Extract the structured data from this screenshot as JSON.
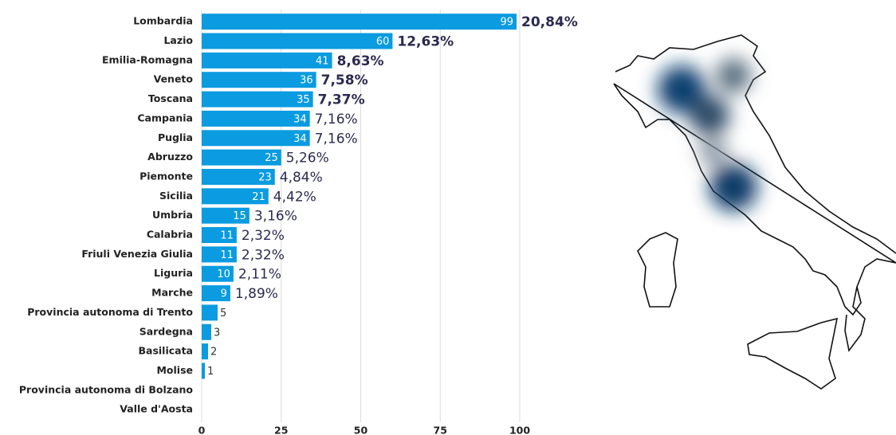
{
  "chart_data": {
    "type": "bar",
    "orientation": "horizontal",
    "color": "#0a9be0",
    "categories": [
      "Lombardia",
      "Lazio",
      "Emilia-Romagna",
      "Veneto",
      "Toscana",
      "Campania",
      "Puglia",
      "Abruzzo",
      "Piemonte",
      "Sicilia",
      "Umbria",
      "Calabria",
      "Friuli Venezia Giulia",
      "Liguria",
      "Marche",
      "Provincia autonoma di Trento",
      "Sardegna",
      "Basilicata",
      "Molise",
      "Provincia autonoma di Bolzano",
      "Valle d'Aosta"
    ],
    "values": [
      99,
      60,
      41,
      36,
      35,
      34,
      34,
      25,
      23,
      21,
      15,
      11,
      11,
      10,
      9,
      5,
      3,
      2,
      1,
      null,
      null
    ],
    "percentages": [
      20.84,
      12.63,
      8.63,
      7.58,
      7.37,
      7.16,
      7.16,
      5.26,
      4.84,
      4.42,
      3.16,
      2.32,
      2.32,
      2.11,
      1.89,
      null,
      null,
      null,
      null,
      null,
      null
    ],
    "percentage_labels": [
      "20,84%",
      "12,63%",
      "8,63%",
      "7,58%",
      "7,37%",
      "7,16%",
      "7,16%",
      "5,26%",
      "4,84%",
      "4,42%",
      "3,16%",
      "2,32%",
      "2,32%",
      "2,11%",
      "1,89%",
      null,
      null,
      null,
      null,
      null,
      null
    ],
    "bold_percentages": [
      true,
      true,
      true,
      true,
      true,
      false,
      false,
      false,
      false,
      false,
      false,
      false,
      false,
      false,
      false,
      false,
      false,
      false,
      false,
      false,
      false
    ],
    "xlim": [
      0,
      100
    ],
    "xticks": [
      0,
      25,
      50,
      75,
      100
    ],
    "grid": true
  }
}
